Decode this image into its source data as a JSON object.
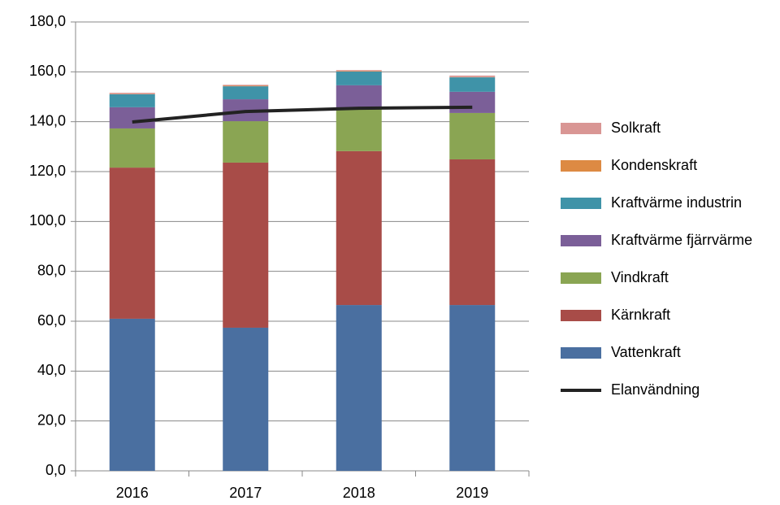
{
  "chart_data": {
    "type": "bar",
    "stacked": true,
    "categories": [
      "2016",
      "2017",
      "2018",
      "2019"
    ],
    "ylim": [
      0,
      180
    ],
    "yticks": [
      {
        "value": 0,
        "label": "0,0"
      },
      {
        "value": 20,
        "label": "20,0"
      },
      {
        "value": 40,
        "label": "40,0"
      },
      {
        "value": 60,
        "label": "60,0"
      },
      {
        "value": 80,
        "label": "80,0"
      },
      {
        "value": 100,
        "label": "100,0"
      },
      {
        "value": 120,
        "label": "120,0"
      },
      {
        "value": 140,
        "label": "140,0"
      },
      {
        "value": 160,
        "label": "160,0"
      },
      {
        "value": 180,
        "label": "180,0"
      }
    ],
    "grid": true,
    "legend": "right",
    "series": [
      {
        "name": "Vattenkraft",
        "color": "#4a6fa0",
        "values": [
          61.0,
          57.4,
          66.5,
          66.5
        ]
      },
      {
        "name": "Kärnkraft",
        "color": "#a84c48",
        "values": [
          60.6,
          66.2,
          61.7,
          58.4
        ]
      },
      {
        "name": "Vindkraft",
        "color": "#8aa553",
        "values": [
          15.7,
          16.6,
          17.2,
          18.6
        ]
      },
      {
        "name": "Kraftvärme fjärrvärme",
        "color": "#7b5f98",
        "values": [
          8.5,
          8.8,
          9.2,
          8.5
        ]
      },
      {
        "name": "Kraftvärme industrin",
        "color": "#3f93a8",
        "values": [
          5.2,
          5.2,
          5.5,
          5.8
        ]
      },
      {
        "name": "Kondenskraft",
        "color": "#dd8a43",
        "values": [
          0.1,
          0.2,
          0.2,
          0.1
        ]
      },
      {
        "name": "Solkraft",
        "color": "#d99694",
        "values": [
          0.5,
          0.4,
          0.4,
          0.6
        ]
      },
      {
        "name": "Elanvändning",
        "color": "#222222",
        "type": "line",
        "values": [
          139.9,
          144.1,
          145.4,
          145.8
        ]
      }
    ]
  }
}
